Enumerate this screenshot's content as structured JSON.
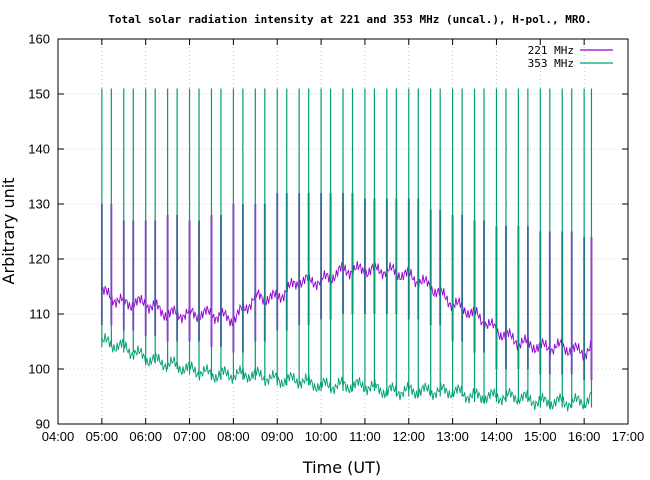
{
  "chart_data": {
    "type": "line",
    "title": "Total solar radiation intensity at 221 and 353 MHz (uncal.), H-pol., MRO.",
    "xlabel": "Time (UT)",
    "ylabel": "Arbitrary unit",
    "xlim": [
      "04:00",
      "17:00"
    ],
    "ylim": [
      90,
      160
    ],
    "x_ticks": [
      "04:00",
      "05:00",
      "06:00",
      "07:00",
      "08:00",
      "09:00",
      "10:00",
      "11:00",
      "12:00",
      "13:00",
      "14:00",
      "15:00",
      "16:00",
      "17:00"
    ],
    "y_ticks": [
      90,
      100,
      110,
      120,
      130,
      140,
      150,
      160
    ],
    "grid": true,
    "legend_position": "top-right",
    "colors": {
      "221": "#9400d3",
      "353": "#009e73",
      "axis": "#000000",
      "grid": "#a0a0a0"
    },
    "series": [
      {
        "name": "221 MHz",
        "x": [
          "05:00",
          "05:30",
          "06:00",
          "06:30",
          "07:00",
          "07:30",
          "08:00",
          "08:30",
          "09:00",
          "09:30",
          "10:00",
          "10:30",
          "11:00",
          "11:30",
          "12:00",
          "12:30",
          "13:00",
          "13:30",
          "14:00",
          "14:30",
          "15:00",
          "15:30",
          "16:00",
          "16:10"
        ],
        "y": [
          114,
          112,
          112,
          110,
          110,
          110,
          109,
          113,
          113,
          116,
          116,
          118,
          118,
          118,
          117,
          115,
          112,
          110,
          107,
          105,
          104,
          104,
          103,
          104
        ],
        "spike_top": [
          130,
          127,
          127,
          128,
          127,
          128,
          130,
          130,
          132,
          132,
          132,
          132,
          131,
          131,
          131,
          129,
          128,
          127,
          126,
          126,
          125,
          125,
          124,
          124
        ],
        "spike_bottom": [
          108,
          107,
          106,
          105,
          105,
          104,
          103,
          105,
          107,
          108,
          109,
          110,
          110,
          110,
          109,
          108,
          105,
          103,
          100,
          100,
          99,
          99,
          98,
          98
        ]
      },
      {
        "name": "353 MHz",
        "x": [
          "05:00",
          "05:30",
          "06:00",
          "06:30",
          "07:00",
          "07:30",
          "08:00",
          "08:30",
          "09:00",
          "09:30",
          "10:00",
          "10:30",
          "11:00",
          "11:30",
          "12:00",
          "12:30",
          "13:00",
          "13:30",
          "14:00",
          "14:30",
          "15:00",
          "15:30",
          "16:00",
          "16:10"
        ],
        "y": [
          105,
          104,
          102,
          101,
          100,
          99,
          99,
          99,
          98,
          98,
          97,
          97,
          97,
          96,
          96,
          96,
          96,
          95,
          95,
          95,
          94,
          94,
          94,
          95
        ],
        "spike_top": [
          151,
          151,
          151,
          151,
          151,
          151,
          151,
          151,
          151,
          151,
          151,
          151,
          151,
          151,
          151,
          151,
          151,
          151,
          151,
          151,
          151,
          151,
          151,
          151
        ],
        "spike_bottom": [
          104,
          103,
          101,
          100,
          99,
          98,
          98,
          98,
          97,
          97,
          96,
          96,
          96,
          95,
          95,
          95,
          95,
          94,
          94,
          94,
          93,
          93,
          93,
          93
        ]
      }
    ]
  }
}
